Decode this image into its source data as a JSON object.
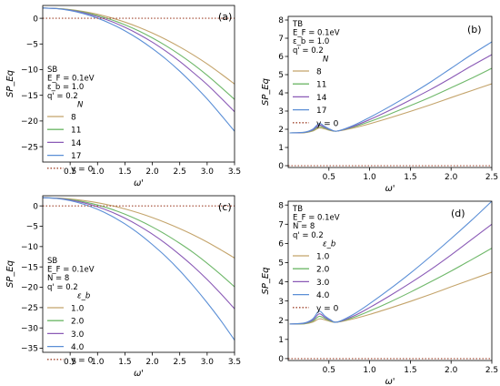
{
  "chart_data": [
    {
      "type": "line",
      "panel_label": "(a)",
      "xlabel": "ω'",
      "ylabel": "SP_Eq",
      "xlim": [
        0,
        3.5
      ],
      "ylim": [
        -28,
        2.5
      ],
      "xticks": [
        0.5,
        1.0,
        1.5,
        2.0,
        2.5,
        3.0,
        3.5
      ],
      "xtick_labels": [
        "0.5",
        "1.0",
        "1.5",
        "2.0",
        "2.5",
        "3.0",
        "3.5"
      ],
      "yticks": [
        0,
        -5,
        -10,
        -15,
        -20,
        -25
      ],
      "ytick_labels": [
        "0",
        "−5",
        "−10",
        "−15",
        "−20",
        "−25"
      ],
      "grid": false,
      "legend_placement": "left",
      "legend_heading": [
        "SB",
        "E_F = 0.1eV",
        "ε_b = 1.0",
        "q' = 0.2",
        "N"
      ],
      "x": [
        0,
        0.25,
        0.5,
        0.75,
        1.0,
        1.25,
        1.5,
        1.75,
        2.0,
        2.25,
        2.5,
        2.75,
        3.0,
        3.25,
        3.5
      ],
      "series": [
        {
          "name": "8",
          "color": "#c4a46b",
          "values": [
            2.0,
            1.92,
            1.7,
            1.31,
            0.78,
            0.09,
            -0.75,
            -1.73,
            -2.87,
            -4.15,
            -5.58,
            -7.15,
            -8.88,
            -10.8,
            -12.8
          ]
        },
        {
          "name": "11",
          "color": "#6fb86a",
          "values": [
            2.0,
            1.91,
            1.64,
            1.18,
            0.55,
            -0.27,
            -1.27,
            -2.45,
            -3.82,
            -5.36,
            -7.09,
            -9.0,
            -11.1,
            -13.4,
            -15.8
          ]
        },
        {
          "name": "14",
          "color": "#8a5ab6",
          "values": [
            2.0,
            1.9,
            1.58,
            1.06,
            0.33,
            -0.61,
            -1.76,
            -3.1,
            -4.65,
            -6.43,
            -8.4,
            -10.6,
            -12.9,
            -15.5,
            -18.2
          ]
        },
        {
          "name": "17",
          "color": "#5b8fd6",
          "values": [
            2.0,
            1.88,
            1.51,
            0.89,
            0.03,
            -1.08,
            -2.44,
            -4.04,
            -5.89,
            -7.96,
            -10.3,
            -12.9,
            -15.7,
            -18.8,
            -22.0
          ]
        },
        {
          "name": "y = 0",
          "color": "#a0452e",
          "dashed": true,
          "values": [
            0,
            0,
            0,
            0,
            0,
            0,
            0,
            0,
            0,
            0,
            0,
            0,
            0,
            0,
            0
          ]
        }
      ]
    },
    {
      "type": "line",
      "panel_label": "(b)",
      "xlabel": "ω'",
      "ylabel": "SP_Eq",
      "xlim": [
        0,
        2.5
      ],
      "ylim": [
        -0.1,
        8.2
      ],
      "xticks": [
        0.5,
        1.0,
        1.5,
        2.0,
        2.5
      ],
      "xtick_labels": [
        "0.5",
        "1.0",
        "1.5",
        "2.0",
        "2.5"
      ],
      "yticks": [
        0,
        1,
        2,
        3,
        4,
        5,
        6,
        7,
        8
      ],
      "ytick_labels": [
        "0",
        "1",
        "2",
        "3",
        "4",
        "5",
        "6",
        "7",
        "8"
      ],
      "grid": false,
      "legend_placement": "upper-left",
      "legend_heading": [
        "TB",
        "E_F = 0.1eV",
        "ε_b = 1.0",
        "q' = 0.2",
        "N"
      ],
      "x": [
        0.02,
        0.2,
        0.3,
        0.38,
        0.45,
        0.52,
        0.6,
        0.8,
        1.0,
        1.25,
        1.5,
        1.75,
        2.0,
        2.25,
        2.5
      ],
      "series": [
        {
          "name": "8",
          "color": "#c4a46b",
          "values": [
            1.8,
            1.81,
            1.9,
            2.07,
            2.02,
            1.93,
            1.9,
            2.07,
            2.3,
            2.63,
            2.98,
            3.35,
            3.74,
            4.12,
            4.5
          ]
        },
        {
          "name": "11",
          "color": "#6fb86a",
          "values": [
            1.8,
            1.82,
            1.93,
            2.15,
            2.06,
            1.95,
            1.9,
            2.12,
            2.42,
            2.84,
            3.3,
            3.77,
            4.28,
            4.8,
            5.35
          ]
        },
        {
          "name": "14",
          "color": "#8a5ab6",
          "values": [
            1.8,
            1.83,
            1.96,
            2.23,
            2.1,
            1.97,
            1.9,
            2.16,
            2.53,
            3.05,
            3.61,
            4.19,
            4.82,
            5.48,
            6.1
          ]
        },
        {
          "name": "17",
          "color": "#5b8fd6",
          "values": [
            1.8,
            1.84,
            2.0,
            2.32,
            2.15,
            1.99,
            1.9,
            2.21,
            2.65,
            3.26,
            3.91,
            4.6,
            5.35,
            6.1,
            6.8
          ]
        },
        {
          "name": "y = 0",
          "color": "#a0452e",
          "dashed": true,
          "values": [
            0,
            0,
            0,
            0,
            0,
            0,
            0,
            0,
            0,
            0,
            0,
            0,
            0,
            0,
            0
          ]
        }
      ]
    },
    {
      "type": "line",
      "panel_label": "(c)",
      "xlabel": "ω'",
      "ylabel": "SP_Eq",
      "xlim": [
        0,
        3.5
      ],
      "ylim": [
        -36,
        2.5
      ],
      "xticks": [
        0.5,
        1.0,
        1.5,
        2.0,
        2.5,
        3.0,
        3.5
      ],
      "xtick_labels": [
        "0.5",
        "1.0",
        "1.5",
        "2.0",
        "2.5",
        "3.0",
        "3.5"
      ],
      "yticks": [
        0,
        -5,
        -10,
        -15,
        -20,
        -25,
        -30,
        -35
      ],
      "ytick_labels": [
        "0",
        "−5",
        "−10",
        "−15",
        "−20",
        "−25",
        "−30",
        "−35"
      ],
      "grid": false,
      "legend_placement": "left",
      "legend_heading": [
        "SB",
        "E_F = 0.1eV",
        "N = 8",
        "q' = 0.2",
        "ε_b"
      ],
      "x": [
        0,
        0.25,
        0.5,
        0.75,
        1.0,
        1.25,
        1.5,
        1.75,
        2.0,
        2.25,
        2.5,
        2.75,
        3.0,
        3.25,
        3.5
      ],
      "series": [
        {
          "name": "1.0",
          "color": "#c4a46b",
          "values": [
            2.0,
            1.92,
            1.7,
            1.31,
            0.78,
            0.09,
            -0.75,
            -1.73,
            -2.87,
            -4.15,
            -5.58,
            -7.15,
            -8.88,
            -10.8,
            -12.8
          ]
        },
        {
          "name": "2.0",
          "color": "#6fb86a",
          "values": [
            2.0,
            1.9,
            1.56,
            1.0,
            0.22,
            -0.79,
            -2.03,
            -3.5,
            -5.18,
            -7.08,
            -9.2,
            -11.5,
            -14.1,
            -16.9,
            -19.9
          ]
        },
        {
          "name": "3.0",
          "color": "#8a5ab6",
          "values": [
            2.0,
            1.87,
            1.44,
            0.75,
            -0.22,
            -1.48,
            -3.02,
            -4.84,
            -6.94,
            -9.31,
            -12.0,
            -14.9,
            -18.1,
            -21.6,
            -25.3
          ]
        },
        {
          "name": "4.0",
          "color": "#5b8fd6",
          "values": [
            2.0,
            1.83,
            1.3,
            0.4,
            -0.84,
            -2.46,
            -4.43,
            -6.77,
            -9.5,
            -12.5,
            -15.9,
            -19.7,
            -23.8,
            -28.2,
            -33.0
          ]
        },
        {
          "name": "y = 0",
          "color": "#a0452e",
          "dashed": true,
          "values": [
            0,
            0,
            0,
            0,
            0,
            0,
            0,
            0,
            0,
            0,
            0,
            0,
            0,
            0,
            0
          ]
        }
      ]
    },
    {
      "type": "line",
      "panel_label": "(d)",
      "xlabel": "ω'",
      "ylabel": "SP_Eq",
      "xlim": [
        0,
        2.5
      ],
      "ylim": [
        -0.1,
        8.2
      ],
      "xticks": [
        0.5,
        1.0,
        1.5,
        2.0,
        2.5
      ],
      "xtick_labels": [
        "0.5",
        "1.0",
        "1.5",
        "2.0",
        "2.5"
      ],
      "yticks": [
        0,
        1,
        2,
        3,
        4,
        5,
        6,
        7,
        8
      ],
      "ytick_labels": [
        "0",
        "1",
        "2",
        "3",
        "4",
        "5",
        "6",
        "7",
        "8"
      ],
      "grid": false,
      "legend_placement": "upper-left",
      "legend_heading": [
        "TB",
        "E_F = 0.1eV",
        "N = 8",
        "q' = 0.2",
        "ε_b"
      ],
      "x": [
        0.02,
        0.2,
        0.3,
        0.38,
        0.45,
        0.52,
        0.6,
        0.8,
        1.0,
        1.25,
        1.5,
        1.75,
        2.0,
        2.25,
        2.5
      ],
      "series": [
        {
          "name": "1.0",
          "color": "#c4a46b",
          "values": [
            1.8,
            1.81,
            1.9,
            2.07,
            2.02,
            1.93,
            1.9,
            2.07,
            2.3,
            2.63,
            2.98,
            3.35,
            3.74,
            4.12,
            4.5
          ]
        },
        {
          "name": "2.0",
          "color": "#6fb86a",
          "values": [
            1.8,
            1.82,
            1.95,
            2.2,
            2.09,
            1.96,
            1.9,
            2.14,
            2.48,
            2.95,
            3.46,
            4.0,
            4.56,
            5.15,
            5.75
          ]
        },
        {
          "name": "3.0",
          "color": "#8a5ab6",
          "values": [
            1.8,
            1.84,
            2.0,
            2.33,
            2.15,
            1.99,
            1.9,
            2.21,
            2.66,
            3.28,
            3.94,
            4.64,
            5.4,
            6.2,
            7.0
          ]
        },
        {
          "name": "4.0",
          "color": "#5b8fd6",
          "values": [
            1.8,
            1.86,
            2.06,
            2.47,
            2.22,
            2.02,
            1.9,
            2.3,
            2.86,
            3.63,
            4.45,
            5.33,
            6.25,
            7.2,
            8.2
          ]
        },
        {
          "name": "y = 0",
          "color": "#a0452e",
          "dashed": true,
          "values": [
            0,
            0,
            0,
            0,
            0,
            0,
            0,
            0,
            0,
            0,
            0,
            0,
            0,
            0,
            0
          ]
        }
      ]
    }
  ]
}
